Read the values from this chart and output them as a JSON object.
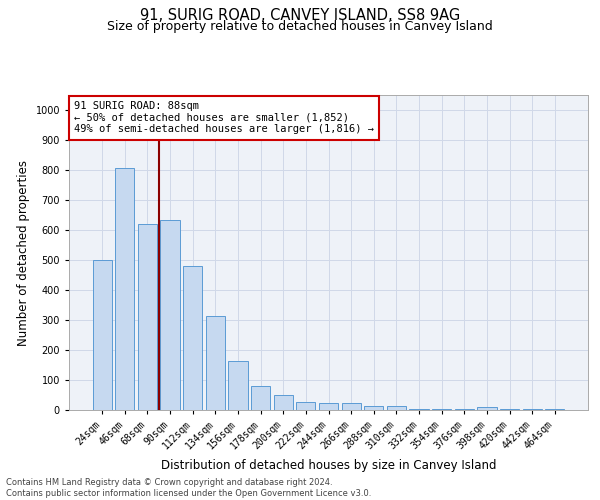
{
  "title_line1": "91, SURIG ROAD, CANVEY ISLAND, SS8 9AG",
  "title_line2": "Size of property relative to detached houses in Canvey Island",
  "xlabel": "Distribution of detached houses by size in Canvey Island",
  "ylabel": "Number of detached properties",
  "categories": [
    "24sqm",
    "46sqm",
    "68sqm",
    "90sqm",
    "112sqm",
    "134sqm",
    "156sqm",
    "178sqm",
    "200sqm",
    "222sqm",
    "244sqm",
    "266sqm",
    "288sqm",
    "310sqm",
    "332sqm",
    "354sqm",
    "376sqm",
    "398sqm",
    "420sqm",
    "442sqm",
    "464sqm"
  ],
  "values": [
    500,
    808,
    620,
    635,
    480,
    313,
    163,
    80,
    50,
    27,
    22,
    22,
    15,
    12,
    3,
    3,
    3,
    10,
    3,
    3,
    3
  ],
  "bar_color": "#c6d9f0",
  "bar_edge_color": "#5b9bd5",
  "grid_color": "#d0d8e8",
  "background_color": "#eef2f8",
  "vline_color": "#8b0000",
  "annotation_text": "91 SURIG ROAD: 88sqm\n← 50% of detached houses are smaller (1,852)\n49% of semi-detached houses are larger (1,816) →",
  "annotation_box_color": "#ffffff",
  "annotation_box_edge": "#cc0000",
  "ylim": [
    0,
    1050
  ],
  "yticks": [
    0,
    100,
    200,
    300,
    400,
    500,
    600,
    700,
    800,
    900,
    1000
  ],
  "footer_line1": "Contains HM Land Registry data © Crown copyright and database right 2024.",
  "footer_line2": "Contains public sector information licensed under the Open Government Licence v3.0.",
  "title_fontsize": 10.5,
  "subtitle_fontsize": 9,
  "tick_fontsize": 7,
  "ylabel_fontsize": 8.5,
  "xlabel_fontsize": 8.5,
  "annotation_fontsize": 7.5,
  "footer_fontsize": 6
}
